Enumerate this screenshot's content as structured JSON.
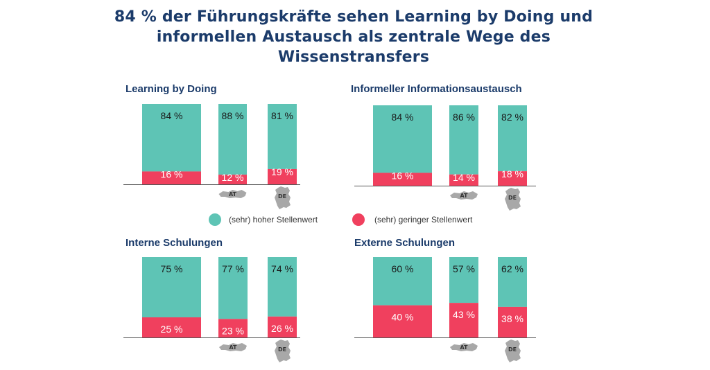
{
  "title": "84 % der Führungskräfte sehen Learning by Doing und informellen Austausch als zentrale Wege des Wissenstransfers",
  "colors": {
    "high": "#5ec4b5",
    "low": "#f0405e",
    "title": "#1b3b6a",
    "map": "#a8a8a8"
  },
  "legend": [
    {
      "label": "(sehr) hoher Stellenwert",
      "color": "#5ec4b5"
    },
    {
      "label": "(sehr) geringer Stellenwert",
      "color": "#f0405e"
    }
  ],
  "chart_data": [
    {
      "type": "bar",
      "stacked": true,
      "title": "Learning by Doing",
      "categories": [
        "",
        "AT",
        "DE"
      ],
      "series": [
        {
          "name": "(sehr) hoher Stellenwert",
          "values": [
            84,
            88,
            81
          ]
        },
        {
          "name": "(sehr) geringer Stellenwert",
          "values": [
            16,
            12,
            19
          ]
        }
      ],
      "ylim": [
        0,
        100
      ]
    },
    {
      "type": "bar",
      "stacked": true,
      "title": "Informeller Informationsaustausch",
      "categories": [
        "",
        "AT",
        "DE"
      ],
      "series": [
        {
          "name": "(sehr) hoher Stellenwert",
          "values": [
            84,
            86,
            82
          ]
        },
        {
          "name": "(sehr) geringer Stellenwert",
          "values": [
            16,
            14,
            18
          ]
        }
      ],
      "ylim": [
        0,
        100
      ]
    },
    {
      "type": "bar",
      "stacked": true,
      "title": "Interne Schulungen",
      "categories": [
        "",
        "AT",
        "DE"
      ],
      "series": [
        {
          "name": "(sehr) hoher Stellenwert",
          "values": [
            75,
            77,
            74
          ]
        },
        {
          "name": "(sehr) geringer Stellenwert",
          "values": [
            25,
            23,
            26
          ]
        }
      ],
      "ylim": [
        0,
        100
      ]
    },
    {
      "type": "bar",
      "stacked": true,
      "title": "Externe Schulungen",
      "categories": [
        "",
        "AT",
        "DE"
      ],
      "series": [
        {
          "name": "(sehr) hoher Stellenwert",
          "values": [
            60,
            57,
            62
          ]
        },
        {
          "name": "(sehr) geringer Stellenwert",
          "values": [
            40,
            43,
            38
          ]
        }
      ],
      "ylim": [
        0,
        100
      ]
    }
  ]
}
